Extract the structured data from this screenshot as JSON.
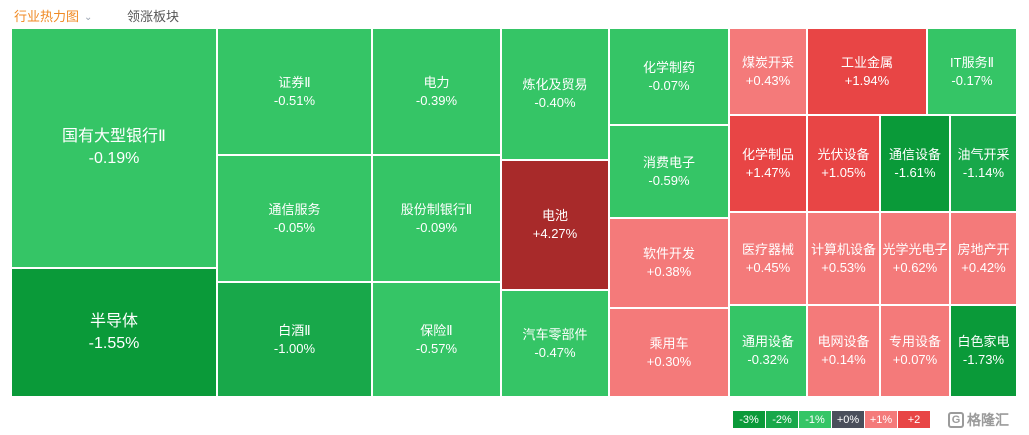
{
  "tabs": [
    {
      "label": "行业热力图",
      "active": true
    },
    {
      "label": "领涨板块",
      "active": false
    }
  ],
  "colors": {
    "green_3": "#0a9a39",
    "green_2": "#18a84a",
    "green_1": "#35c566",
    "neutral": "#4a4f5b",
    "red_1": "#f47a7a",
    "red_2": "#e84545",
    "red_3": "#a82a2a"
  },
  "sectors": [
    {
      "name": "国有大型银行Ⅱ",
      "change": "-0.19%",
      "value": -0.19
    },
    {
      "name": "半导体",
      "change": "-1.55%",
      "value": -1.55
    },
    {
      "name": "证券Ⅱ",
      "change": "-0.51%",
      "value": -0.51
    },
    {
      "name": "通信服务",
      "change": "-0.05%",
      "value": -0.05
    },
    {
      "name": "白酒Ⅱ",
      "change": "-1.00%",
      "value": -1.0
    },
    {
      "name": "电力",
      "change": "-0.39%",
      "value": -0.39
    },
    {
      "name": "股份制银行Ⅱ",
      "change": "-0.09%",
      "value": -0.09
    },
    {
      "name": "保险Ⅱ",
      "change": "-0.57%",
      "value": -0.57
    },
    {
      "name": "炼化及贸易",
      "change": "-0.40%",
      "value": -0.4
    },
    {
      "name": "电池",
      "change": "+4.27%",
      "value": 4.27
    },
    {
      "name": "汽车零部件",
      "change": "-0.47%",
      "value": -0.47
    },
    {
      "name": "化学制药",
      "change": "-0.07%",
      "value": -0.07
    },
    {
      "name": "消费电子",
      "change": "-0.59%",
      "value": -0.59
    },
    {
      "name": "软件开发",
      "change": "+0.38%",
      "value": 0.38
    },
    {
      "name": "乘用车",
      "change": "+0.30%",
      "value": 0.3
    },
    {
      "name": "煤炭开采",
      "change": "+0.43%",
      "value": 0.43
    },
    {
      "name": "工业金属",
      "change": "+1.94%",
      "value": 1.94
    },
    {
      "name": "IT服务Ⅱ",
      "change": "-0.17%",
      "value": -0.17
    },
    {
      "name": "化学制品",
      "change": "+1.47%",
      "value": 1.47
    },
    {
      "name": "光伏设备",
      "change": "+1.05%",
      "value": 1.05
    },
    {
      "name": "通信设备",
      "change": "-1.61%",
      "value": -1.61
    },
    {
      "name": "油气开采",
      "change": "-1.14%",
      "value": -1.14
    },
    {
      "name": "医疗器械",
      "change": "+0.45%",
      "value": 0.45
    },
    {
      "name": "计算机设备",
      "change": "+0.53%",
      "value": 0.53
    },
    {
      "name": "光学光电子",
      "change": "+0.62%",
      "value": 0.62
    },
    {
      "name": "房地产开",
      "change": "+0.42%",
      "value": 0.42
    },
    {
      "name": "通用设备",
      "change": "-0.32%",
      "value": -0.32
    },
    {
      "name": "电网设备",
      "change": "+0.14%",
      "value": 0.14
    },
    {
      "name": "专用设备",
      "change": "+0.07%",
      "value": 0.07
    },
    {
      "name": "白色家电",
      "change": "-1.73%",
      "value": -1.73
    }
  ],
  "legend": [
    "-3%",
    "-2%",
    "-1%",
    "+0%",
    "+1%",
    "+2"
  ],
  "logo": {
    "text": "格隆汇",
    "mark": "G"
  }
}
